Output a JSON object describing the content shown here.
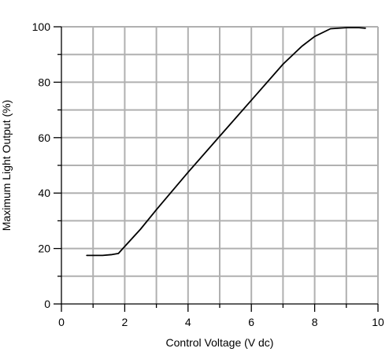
{
  "chart_data": {
    "type": "line",
    "title": "",
    "xlabel": "Control Voltage (V dc)",
    "ylabel": "Maximum Light Output (%)",
    "xlim": [
      0,
      10
    ],
    "ylim": [
      0,
      100
    ],
    "x_major_ticks": [
      0,
      2,
      4,
      6,
      8,
      10
    ],
    "x_tick_labels": [
      "0",
      "2",
      "4",
      "6",
      "8",
      "10"
    ],
    "x_minor_ticks": [
      1,
      3,
      5,
      7,
      9
    ],
    "y_major_ticks": [
      0,
      20,
      40,
      60,
      80,
      100
    ],
    "y_tick_labels": [
      "0",
      "20",
      "40",
      "60",
      "80",
      "100"
    ],
    "y_minor_ticks": [
      10,
      30,
      50,
      70,
      90
    ],
    "grid": true,
    "grid_color": "#b0b0b0",
    "line_color": "#000000",
    "series": [
      {
        "x": [
          0.8,
          1.3,
          1.6,
          1.8,
          1.9,
          2.5,
          3.0,
          4.0,
          5.0,
          6.0,
          7.0,
          7.6,
          8.0,
          8.5,
          9.0,
          9.4,
          9.6
        ],
        "values": [
          17.5,
          17.5,
          17.8,
          18.2,
          19.5,
          27.0,
          34.0,
          47.5,
          60.5,
          73.5,
          86.5,
          93.0,
          96.5,
          99.3,
          99.7,
          99.7,
          99.5
        ]
      }
    ]
  }
}
